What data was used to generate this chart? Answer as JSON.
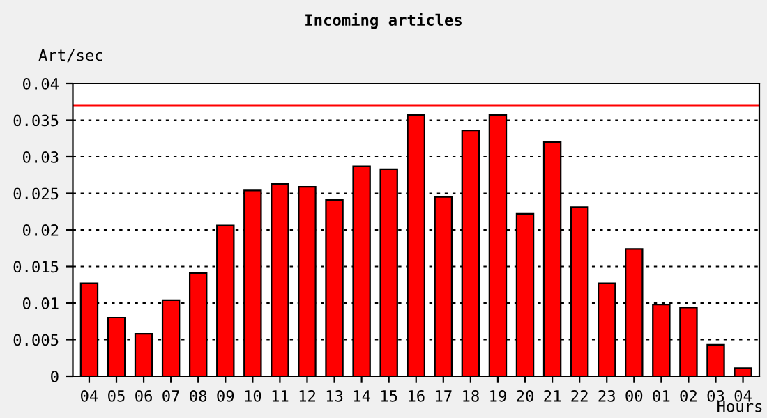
{
  "chart_data": {
    "type": "bar",
    "title": "Incoming articles",
    "ylabel": "Art/sec",
    "xlabel": "Hours",
    "categories": [
      "04",
      "05",
      "06",
      "07",
      "08",
      "09",
      "10",
      "11",
      "12",
      "13",
      "14",
      "15",
      "16",
      "17",
      "18",
      "19",
      "20",
      "21",
      "22",
      "23",
      "00",
      "01",
      "02",
      "03",
      "04"
    ],
    "values": [
      0.0127,
      0.008,
      0.0058,
      0.0104,
      0.0141,
      0.0206,
      0.0254,
      0.0263,
      0.0259,
      0.0241,
      0.0287,
      0.0283,
      0.0357,
      0.0245,
      0.0336,
      0.0357,
      0.0222,
      0.032,
      0.0231,
      0.0127,
      0.0174,
      0.0098,
      0.0094,
      0.0043,
      0.0011
    ],
    "color": "#ff0000",
    "ylim": [
      0,
      0.04
    ],
    "yticks": [
      0,
      0.005,
      0.01,
      0.015,
      0.02,
      0.025,
      0.03,
      0.035,
      0.04
    ],
    "grid": "y",
    "ref_lines": [
      {
        "axis": "y",
        "value": 0.037,
        "color": "#ff0000"
      }
    ]
  }
}
